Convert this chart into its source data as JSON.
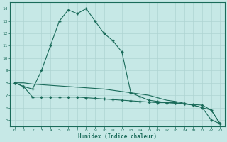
{
  "xlabel": "Humidex (Indice chaleur)",
  "bg_color": "#c6e8e6",
  "grid_color": "#aed4d2",
  "line_color": "#1a6b5a",
  "xlim": [
    -0.5,
    23.5
  ],
  "ylim": [
    4.5,
    14.5
  ],
  "xticks": [
    0,
    1,
    2,
    3,
    4,
    5,
    6,
    7,
    8,
    9,
    10,
    11,
    12,
    13,
    14,
    15,
    16,
    17,
    18,
    19,
    20,
    21,
    22,
    23
  ],
  "yticks": [
    5,
    6,
    7,
    8,
    9,
    10,
    11,
    12,
    13,
    14
  ],
  "line1_x": [
    0,
    1,
    2,
    3,
    4,
    5,
    6,
    7,
    8,
    9,
    10,
    11,
    12,
    13,
    14,
    15,
    16,
    17,
    18,
    19,
    20,
    21,
    22,
    23
  ],
  "line1_y": [
    8.0,
    7.7,
    6.85,
    6.85,
    6.85,
    6.85,
    6.85,
    6.85,
    6.8,
    6.75,
    6.7,
    6.65,
    6.6,
    6.55,
    6.5,
    6.45,
    6.4,
    6.4,
    6.35,
    6.3,
    6.25,
    6.2,
    5.8,
    4.7
  ],
  "line2_x": [
    0,
    1,
    2,
    3,
    4,
    5,
    6,
    7,
    8,
    9,
    10,
    11,
    12,
    13,
    14,
    15,
    16,
    17,
    18,
    19,
    20,
    21,
    22,
    23
  ],
  "line2_y": [
    8.0,
    7.7,
    7.5,
    9.0,
    11.0,
    13.0,
    13.9,
    13.6,
    14.0,
    13.0,
    12.0,
    11.4,
    10.5,
    7.2,
    6.9,
    6.6,
    6.5,
    6.4,
    6.4,
    6.3,
    6.2,
    6.0,
    5.0,
    4.7
  ],
  "line3_x": [
    0,
    1,
    2,
    3,
    4,
    5,
    6,
    7,
    8,
    9,
    10,
    11,
    12,
    13,
    14,
    15,
    16,
    17,
    18,
    19,
    20,
    21,
    22,
    23
  ],
  "line3_y": [
    8.0,
    8.0,
    7.9,
    7.85,
    7.8,
    7.75,
    7.7,
    7.65,
    7.6,
    7.55,
    7.5,
    7.4,
    7.3,
    7.2,
    7.1,
    7.0,
    6.8,
    6.6,
    6.5,
    6.35,
    6.2,
    6.0,
    5.8,
    4.7
  ]
}
